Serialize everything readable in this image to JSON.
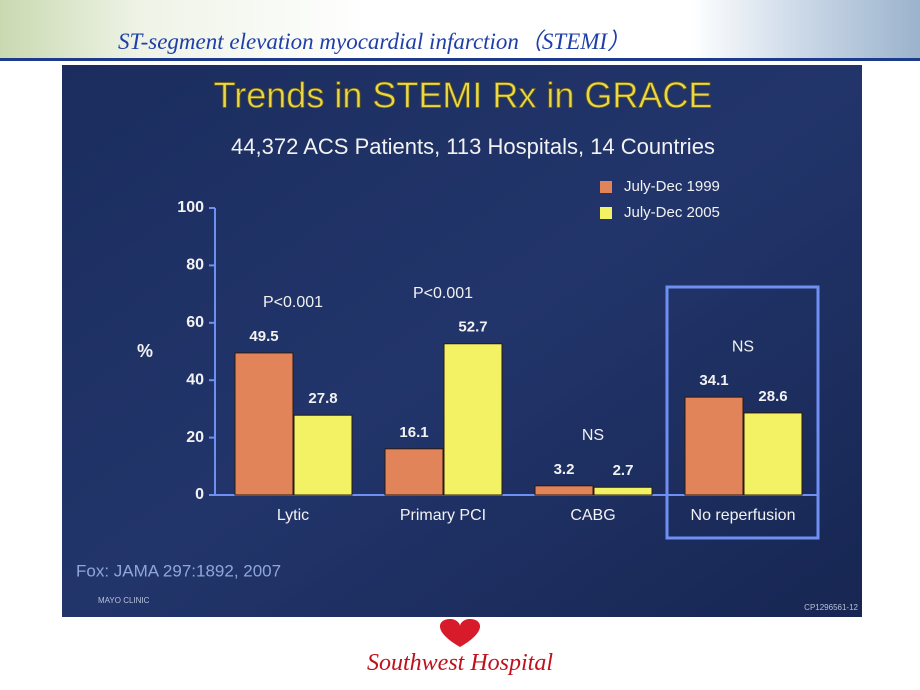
{
  "header": {
    "title": "ST-segment elevation myocardial infarction（STEMI）"
  },
  "chart_data": {
    "type": "bar",
    "title": "Trends in STEMI Rx in GRACE",
    "subtitle": "44,372 ACS Patients, 113 Hospitals, 14 Countries",
    "y_label": "%",
    "categories": [
      "Lytic",
      "Primary PCI",
      "CABG",
      "No reperfusion"
    ],
    "series": [
      {
        "name": "July-Dec 1999",
        "color": "#e2845a",
        "values": [
          49.5,
          16.1,
          3.2,
          34.1
        ]
      },
      {
        "name": "July-Dec 2005",
        "color": "#f2f264",
        "values": [
          27.8,
          52.7,
          2.7,
          28.6
        ]
      }
    ],
    "annotations": [
      "P<0.001",
      "P<0.001",
      "NS",
      "NS"
    ],
    "ylim": [
      0,
      100
    ],
    "yticks": [
      0,
      20,
      40,
      60,
      80,
      100
    ],
    "legend": "top-right",
    "grid": false
  },
  "slide": {
    "source": "Fox:  JAMA 297:1892, 2007",
    "logo": "MAYO CLINIC",
    "code": "CP1296561-12"
  },
  "footer": {
    "text": "Southwest Hospital"
  }
}
